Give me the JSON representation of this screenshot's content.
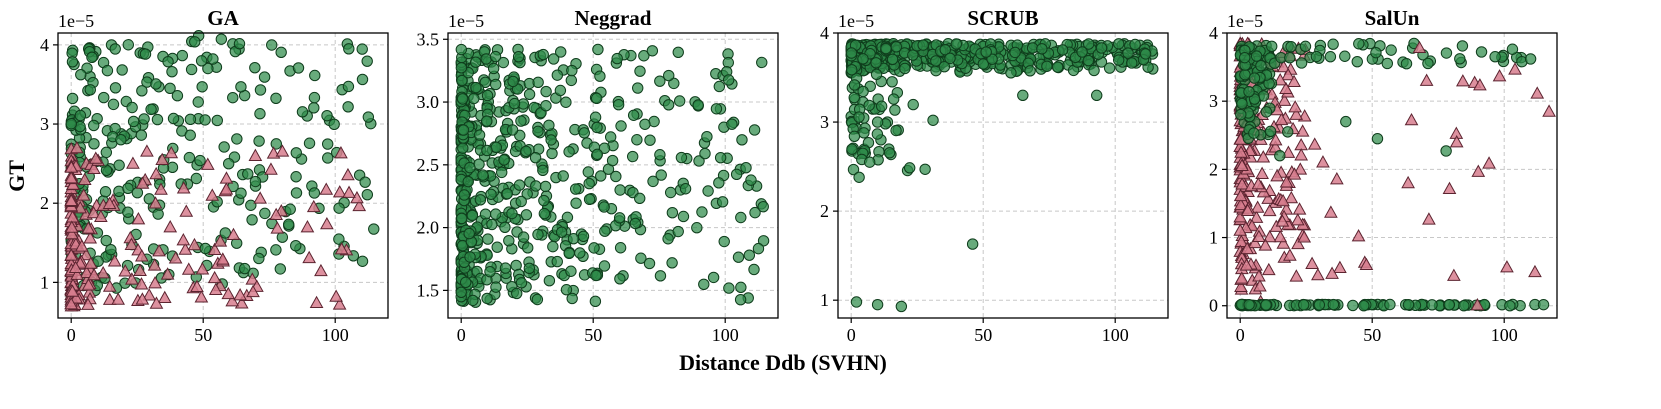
{
  "figure": {
    "shared_ylabel": "GT",
    "shared_xlabel": "Distance Ddb (SVHN)"
  },
  "colors": {
    "green": "#2e8b4a",
    "pink": "#d77e8e"
  },
  "chart_data": [
    {
      "type": "scatter",
      "title": "GA",
      "offset_label": "1e−5",
      "xlim": [
        -5,
        120
      ],
      "ylim": [
        0.55,
        4.15
      ],
      "xticks": [
        0,
        50,
        100
      ],
      "yticks": [
        1,
        2,
        3,
        4
      ],
      "series": [
        {
          "name": "green",
          "marker": "circle",
          "count": 320,
          "seed": 11,
          "x_range": [
            0,
            115
          ],
          "y_range": [
            0.7,
            3.95
          ],
          "x_skew": 2.2,
          "y_skew": 0.9,
          "y_slope": 0.004
        },
        {
          "name": "pink",
          "marker": "triangle",
          "count": 230,
          "seed": 12,
          "x_range": [
            0,
            110
          ],
          "y_range": [
            0.7,
            2.7
          ],
          "x_skew": 4.5,
          "y_skew": 1.2,
          "y_slope": 0.0
        }
      ]
    },
    {
      "type": "scatter",
      "title": "Neggrad",
      "offset_label": "1e−5",
      "xlim": [
        -5,
        120
      ],
      "ylim": [
        1.28,
        3.55
      ],
      "xticks": [
        0,
        50,
        100
      ],
      "yticks": [
        1.5,
        2.0,
        2.5,
        3.0,
        3.5
      ],
      "series": [
        {
          "name": "green",
          "marker": "circle",
          "count": 620,
          "seed": 21,
          "x_range": [
            0,
            115
          ],
          "y_range": [
            1.4,
            3.42
          ],
          "x_skew": 2.8,
          "y_skew": 1.0,
          "y_slope": 0.0
        }
      ]
    },
    {
      "type": "scatter",
      "title": "SCRUB",
      "offset_label": "1e−5",
      "xlim": [
        -5,
        120
      ],
      "ylim": [
        0.8,
        4.0
      ],
      "xticks": [
        0,
        50,
        100
      ],
      "yticks": [
        1,
        2,
        3,
        4
      ],
      "series": [
        {
          "name": "green",
          "marker": "circle",
          "count": 520,
          "seed": 31,
          "x_range": [
            0,
            115
          ],
          "y_range": [
            3.55,
            3.88
          ],
          "x_skew": 2.0,
          "y_skew": 0.6,
          "y_slope": 0.0
        },
        {
          "name": "green",
          "marker": "circle",
          "count": 60,
          "seed": 32,
          "x_range": [
            0,
            25
          ],
          "y_range": [
            2.4,
            3.6
          ],
          "x_skew": 2.5,
          "y_skew": 0.8,
          "y_slope": 0.0
        }
      ],
      "points_extra": [
        {
          "x": 2,
          "y": 0.98
        },
        {
          "x": 10,
          "y": 0.95
        },
        {
          "x": 19,
          "y": 0.93
        },
        {
          "x": 46,
          "y": 1.63
        },
        {
          "x": 3,
          "y": 2.38
        },
        {
          "x": 4,
          "y": 2.58
        },
        {
          "x": 7,
          "y": 2.55
        },
        {
          "x": 28,
          "y": 2.47
        },
        {
          "x": 31,
          "y": 3.02
        },
        {
          "x": 65,
          "y": 3.3
        },
        {
          "x": 93,
          "y": 3.3
        },
        {
          "x": 10,
          "y": 3.0
        }
      ]
    },
    {
      "type": "scatter",
      "title": "SalUn",
      "offset_label": "1e−5",
      "xlim": [
        -5,
        120
      ],
      "ylim": [
        -0.18,
        4.0
      ],
      "xticks": [
        0,
        50,
        100
      ],
      "yticks": [
        0,
        1,
        2,
        3,
        4
      ],
      "series": [
        {
          "name": "pink",
          "marker": "triangle",
          "count": 260,
          "seed": 41,
          "x_range": [
            0,
            25
          ],
          "y_range": [
            0.0,
            3.85
          ],
          "x_skew": 2.5,
          "y_skew": 0.7,
          "y_slope": 0.0
        },
        {
          "name": "green",
          "marker": "circle",
          "count": 110,
          "seed": 42,
          "x_range": [
            0,
            12
          ],
          "y_range": [
            2.35,
            3.82
          ],
          "x_skew": 1.5,
          "y_skew": 0.6,
          "y_slope": 0.0
        },
        {
          "name": "green",
          "marker": "circle",
          "count": 90,
          "seed": 43,
          "x_range": [
            0,
            115
          ],
          "y_range": [
            0.0,
            0.02
          ],
          "x_skew": 1.8,
          "y_skew": 1.0,
          "y_slope": 0.0
        },
        {
          "name": "green",
          "marker": "circle",
          "count": 45,
          "seed": 44,
          "x_range": [
            10,
            113
          ],
          "y_range": [
            3.55,
            3.85
          ],
          "x_skew": 1.2,
          "y_skew": 1.0,
          "y_slope": 0.0
        },
        {
          "name": "pink",
          "marker": "triangle",
          "count": 30,
          "seed": 45,
          "x_range": [
            20,
            118
          ],
          "y_range": [
            0.0,
            3.8
          ],
          "x_skew": 1.4,
          "y_skew": 1.0,
          "y_slope": 0.0
        }
      ],
      "points_extra": [
        {
          "x": 15,
          "y": 2.2,
          "m": "green"
        },
        {
          "x": 18,
          "y": 2.55,
          "m": "green"
        },
        {
          "x": 40,
          "y": 2.7,
          "m": "green"
        },
        {
          "x": 52,
          "y": 2.45,
          "m": "green"
        },
        {
          "x": 63,
          "y": 3.55,
          "m": "green"
        },
        {
          "x": 78,
          "y": 2.27,
          "m": "green"
        },
        {
          "x": 82,
          "y": 2.4,
          "m": "pink"
        },
        {
          "x": 117,
          "y": 2.85,
          "m": "pink"
        },
        {
          "x": 110,
          "y": 3.62,
          "m": "green"
        }
      ]
    }
  ]
}
